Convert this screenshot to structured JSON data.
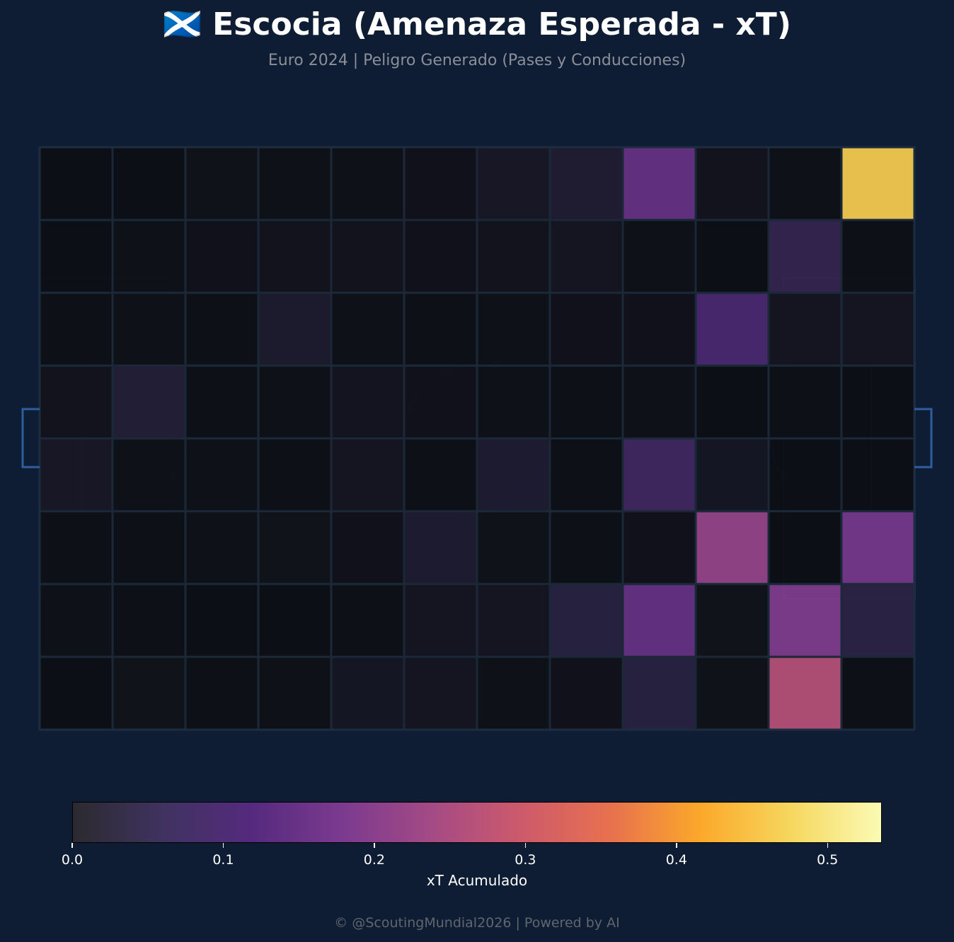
{
  "header": {
    "title": "🏴󠁧󠁢󠁳󠁣󠁴󠁿 Escocia (Amenaza Esperada - xT)",
    "subtitle": "Euro 2024 | Peligro Generado (Pases y Conducciones)"
  },
  "colorbar": {
    "label": "xT Acumulado",
    "ticks": [
      "0.0",
      "0.1",
      "0.2",
      "0.3",
      "0.4",
      "0.5"
    ],
    "range": [
      0,
      0.535
    ],
    "stops": [
      "#2b2a2f",
      "#3f3360",
      "#552a7e",
      "#7b3a8f",
      "#a44a85",
      "#cd5a6b",
      "#e8714e",
      "#fba92a",
      "#f6d75e",
      "#fbfbb5"
    ]
  },
  "footer": "© @ScoutingMundial2026 | Powered by AI",
  "chart_data": {
    "type": "heatmap",
    "title": "🏴󠁧󠁢󠁳󠁣󠁴󠁿 Escocia (Amenaza Esperada - xT)",
    "subtitle": "Euro 2024 | Peligro Generado (Pases y Conducciones)",
    "colorbar_label": "xT Acumulado",
    "vmin": 0,
    "vmax": 0.535,
    "rows": 8,
    "cols": 12,
    "values": [
      [
        0.0,
        0.0,
        0.01,
        0.005,
        0.005,
        0.008,
        0.03,
        0.045,
        0.145,
        0.015,
        0.005,
        0.46
      ],
      [
        0.0,
        0.005,
        0.008,
        0.015,
        0.015,
        0.008,
        0.015,
        0.022,
        0.005,
        0.0,
        0.08,
        0.002
      ],
      [
        0.002,
        0.005,
        0.003,
        0.04,
        0.005,
        0.002,
        0.005,
        0.008,
        0.008,
        0.11,
        0.02,
        0.02
      ],
      [
        0.015,
        0.05,
        0.003,
        0.005,
        0.018,
        0.008,
        0.006,
        0.002,
        0.005,
        0.0,
        0.002,
        0.001
      ],
      [
        0.03,
        0.005,
        0.005,
        0.002,
        0.02,
        0.003,
        0.042,
        0.003,
        0.095,
        0.025,
        0.001,
        0.001
      ],
      [
        0.002,
        0.002,
        0.005,
        0.012,
        0.008,
        0.042,
        0.01,
        0.002,
        0.008,
        0.215,
        0.001,
        0.17
      ],
      [
        0.005,
        0.003,
        0.001,
        0.001,
        0.003,
        0.02,
        0.02,
        0.06,
        0.145,
        0.012,
        0.185,
        0.065
      ],
      [
        0.0,
        0.012,
        0.004,
        0.005,
        0.025,
        0.02,
        0.005,
        0.008,
        0.06,
        0.01,
        0.265,
        0.004
      ]
    ]
  }
}
